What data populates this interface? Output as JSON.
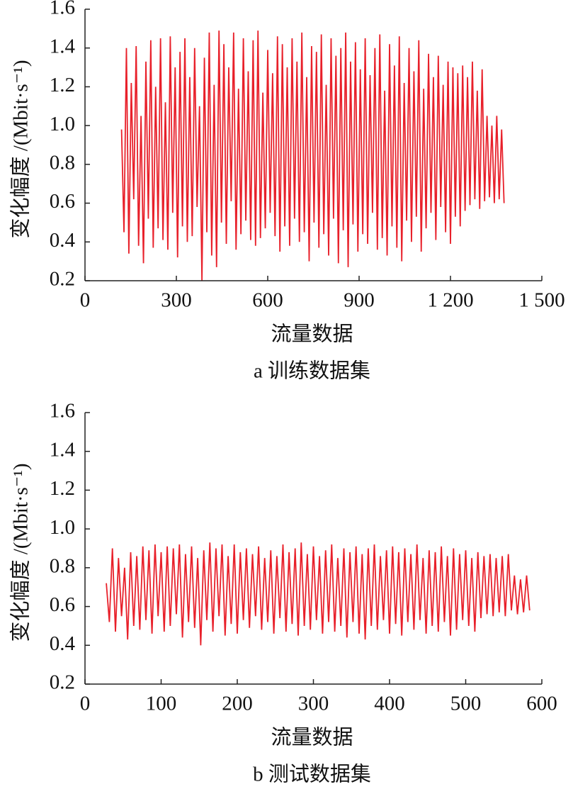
{
  "chart_data": [
    {
      "type": "line",
      "xlabel": "流量数据",
      "ylabel": "变化幅度 /(Mbit·s⁻¹)",
      "caption": "a 训练数据集",
      "color": "#e8202a",
      "xlim": [
        0,
        1500
      ],
      "xticks": [
        0,
        300,
        600,
        900,
        {
          "value": 1200,
          "label": "1 200"
        },
        {
          "value": 1500,
          "label": "1 500"
        }
      ],
      "ylim": [
        0.2,
        1.6
      ],
      "yticks": [
        0.2,
        0.4,
        0.6,
        0.8,
        {
          "value": 1.0,
          "label": "1.0"
        },
        1.2,
        1.4,
        1.6
      ],
      "x": [
        120,
        128,
        136,
        144,
        152,
        160,
        168,
        176,
        184,
        192,
        200,
        208,
        216,
        224,
        232,
        240,
        248,
        256,
        264,
        272,
        280,
        288,
        296,
        304,
        312,
        320,
        328,
        336,
        344,
        352,
        360,
        368,
        376,
        384,
        392,
        400,
        408,
        416,
        424,
        432,
        440,
        448,
        456,
        464,
        472,
        480,
        488,
        496,
        504,
        512,
        520,
        528,
        536,
        544,
        552,
        560,
        568,
        576,
        584,
        592,
        600,
        608,
        616,
        624,
        632,
        640,
        648,
        656,
        664,
        672,
        680,
        688,
        696,
        704,
        712,
        720,
        728,
        736,
        744,
        752,
        760,
        768,
        776,
        784,
        792,
        800,
        808,
        816,
        824,
        832,
        840,
        848,
        856,
        864,
        872,
        880,
        888,
        896,
        904,
        912,
        920,
        928,
        936,
        944,
        952,
        960,
        968,
        976,
        984,
        992,
        1000,
        1008,
        1016,
        1024,
        1032,
        1040,
        1048,
        1056,
        1064,
        1072,
        1080,
        1088,
        1096,
        1104,
        1112,
        1120,
        1128,
        1136,
        1144,
        1152,
        1160,
        1168,
        1176,
        1184,
        1192,
        1200,
        1208,
        1216,
        1224,
        1232,
        1240,
        1248,
        1256,
        1264,
        1272,
        1280,
        1288,
        1296,
        1304,
        1312,
        1320,
        1328,
        1336,
        1344,
        1352,
        1360,
        1368,
        1376
      ],
      "values": [
        0.98,
        0.45,
        1.4,
        0.34,
        1.22,
        0.62,
        1.41,
        0.38,
        1.05,
        0.29,
        1.33,
        0.52,
        1.44,
        0.37,
        1.2,
        0.47,
        1.45,
        0.41,
        1.12,
        0.36,
        1.46,
        0.55,
        1.3,
        0.32,
        1.38,
        0.48,
        1.45,
        0.4,
        1.25,
        0.43,
        1.4,
        0.58,
        1.1,
        0.2,
        1.35,
        0.45,
        1.48,
        0.33,
        1.21,
        0.27,
        1.49,
        0.5,
        1.42,
        0.39,
        1.3,
        0.61,
        1.48,
        0.36,
        1.19,
        0.44,
        1.45,
        0.51,
        1.28,
        0.41,
        1.44,
        0.38,
        1.49,
        0.42,
        1.17,
        0.47,
        1.39,
        0.55,
        1.27,
        0.43,
        1.46,
        0.35,
        1.42,
        0.48,
        1.3,
        0.38,
        1.45,
        0.52,
        1.33,
        0.4,
        1.48,
        0.45,
        1.25,
        0.3,
        1.41,
        0.5,
        1.38,
        0.37,
        1.47,
        0.44,
        1.21,
        0.33,
        1.45,
        0.52,
        1.36,
        0.29,
        1.4,
        0.46,
        1.48,
        0.27,
        1.33,
        0.49,
        1.43,
        0.35,
        1.29,
        0.44,
        1.45,
        0.39,
        1.26,
        0.55,
        1.4,
        0.36,
        1.47,
        0.42,
        1.18,
        0.33,
        1.42,
        0.48,
        1.31,
        0.37,
        1.46,
        0.3,
        1.22,
        0.51,
        1.4,
        0.4,
        1.28,
        0.53,
        1.44,
        0.35,
        1.19,
        0.47,
        1.37,
        0.55,
        1.25,
        0.41,
        1.36,
        0.58,
        1.21,
        0.45,
        1.33,
        0.39,
        1.3,
        0.53,
        1.27,
        0.48,
        1.31,
        0.56,
        1.25,
        0.59,
        1.33,
        0.62,
        1.18,
        0.57,
        1.29,
        0.61,
        1.05,
        0.63,
        1.0,
        0.6,
        1.05,
        0.62,
        0.98,
        0.6
      ]
    },
    {
      "type": "line",
      "xlabel": "流量数据",
      "ylabel": "变化幅度 /(Mbit·s⁻¹)",
      "caption": "b 测试数据集",
      "color": "#e8202a",
      "xlim": [
        0,
        600
      ],
      "xticks": [
        0,
        100,
        200,
        300,
        400,
        500,
        600
      ],
      "ylim": [
        0.2,
        1.6
      ],
      "yticks": [
        0.2,
        0.4,
        0.6,
        0.8,
        {
          "value": 1.0,
          "label": "1.0"
        },
        1.2,
        1.4,
        1.6
      ],
      "x": [
        28,
        32,
        36,
        40,
        44,
        48,
        52,
        56,
        60,
        64,
        68,
        72,
        76,
        80,
        84,
        88,
        92,
        96,
        100,
        104,
        108,
        112,
        116,
        120,
        124,
        128,
        132,
        136,
        140,
        144,
        148,
        152,
        156,
        160,
        164,
        168,
        172,
        176,
        180,
        184,
        188,
        192,
        196,
        200,
        204,
        208,
        212,
        216,
        220,
        224,
        228,
        232,
        236,
        240,
        244,
        248,
        252,
        256,
        260,
        264,
        268,
        272,
        276,
        280,
        284,
        288,
        292,
        296,
        300,
        304,
        308,
        312,
        316,
        320,
        324,
        328,
        332,
        336,
        340,
        344,
        348,
        352,
        356,
        360,
        364,
        368,
        372,
        376,
        380,
        384,
        388,
        392,
        396,
        400,
        404,
        408,
        412,
        416,
        420,
        424,
        428,
        432,
        436,
        440,
        444,
        448,
        452,
        456,
        460,
        464,
        468,
        472,
        476,
        480,
        484,
        488,
        492,
        496,
        500,
        504,
        508,
        512,
        516,
        520,
        524,
        528,
        532,
        536,
        540,
        544,
        548,
        552,
        556,
        560,
        564,
        568,
        572,
        576,
        580,
        584
      ],
      "values": [
        0.72,
        0.52,
        0.9,
        0.47,
        0.85,
        0.55,
        0.8,
        0.43,
        0.88,
        0.5,
        0.86,
        0.48,
        0.91,
        0.53,
        0.89,
        0.46,
        0.92,
        0.55,
        0.88,
        0.47,
        0.91,
        0.5,
        0.9,
        0.56,
        0.92,
        0.44,
        0.87,
        0.52,
        0.91,
        0.49,
        0.85,
        0.4,
        0.89,
        0.53,
        0.93,
        0.47,
        0.9,
        0.55,
        0.92,
        0.45,
        0.86,
        0.51,
        0.92,
        0.46,
        0.88,
        0.53,
        0.9,
        0.49,
        0.87,
        0.55,
        0.91,
        0.48,
        0.85,
        0.52,
        0.89,
        0.46,
        0.86,
        0.54,
        0.92,
        0.47,
        0.88,
        0.51,
        0.9,
        0.45,
        0.93,
        0.5,
        0.87,
        0.48,
        0.91,
        0.53,
        0.86,
        0.46,
        0.89,
        0.52,
        0.92,
        0.47,
        0.85,
        0.5,
        0.9,
        0.44,
        0.88,
        0.52,
        0.91,
        0.46,
        0.87,
        0.43,
        0.9,
        0.5,
        0.92,
        0.48,
        0.86,
        0.53,
        0.89,
        0.46,
        0.91,
        0.51,
        0.88,
        0.45,
        0.9,
        0.52,
        0.87,
        0.48,
        0.92,
        0.53,
        0.85,
        0.46,
        0.89,
        0.5,
        0.88,
        0.47,
        0.91,
        0.52,
        0.86,
        0.45,
        0.9,
        0.48,
        0.87,
        0.53,
        0.89,
        0.5,
        0.85,
        0.47,
        0.88,
        0.54,
        0.86,
        0.56,
        0.87,
        0.55,
        0.85,
        0.57,
        0.86,
        0.55,
        0.87,
        0.58,
        0.76,
        0.56,
        0.74,
        0.57,
        0.76,
        0.58
      ]
    }
  ]
}
